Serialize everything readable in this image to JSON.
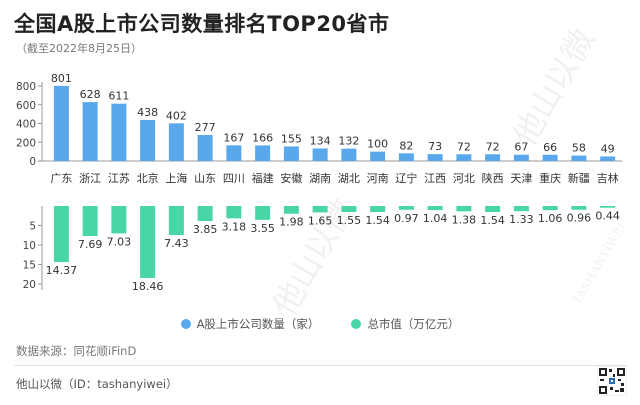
{
  "title": "全国A股上市公司数量排名TOP20省市",
  "subtitle": "（截至2022年8月25日）",
  "source": "数据来源：同花顺iFinD",
  "footer": "他山以微（ID：tashanyiwei）",
  "watermark": "他山以微",
  "watermark_en": "TASHANYIWEI",
  "colors": {
    "blue": "#5aa8ec",
    "green": "#49d6a6",
    "axis": "#999999"
  },
  "legend": [
    {
      "label": "A股上市公司数量（家）",
      "color": "#5aa8ec"
    },
    {
      "label": "总市值（万亿元）",
      "color": "#49d6a6"
    }
  ],
  "chart_data": {
    "type": "bar",
    "categories": [
      "广东",
      "浙江",
      "江苏",
      "北京",
      "上海",
      "山东",
      "四川",
      "福建",
      "安徽",
      "湖南",
      "湖北",
      "河南",
      "辽宁",
      "江西",
      "河北",
      "陕西",
      "天津",
      "重庆",
      "新疆",
      "吉林"
    ],
    "series": [
      {
        "name": "A股上市公司数量（家）",
        "values": [
          801,
          628,
          611,
          438,
          402,
          277,
          167,
          166,
          155,
          134,
          132,
          100,
          82,
          73,
          72,
          72,
          67,
          66,
          58,
          49
        ],
        "labels": [
          "801",
          "628",
          "611",
          "438",
          "402",
          "277",
          "167",
          "166",
          "155",
          "134",
          "132",
          "100",
          "82",
          "73",
          "72",
          "72",
          "67",
          "66",
          "58",
          "49"
        ],
        "ylim": [
          0,
          800
        ],
        "yticks": [
          "0",
          "200",
          "400",
          "600",
          "800"
        ]
      },
      {
        "name": "总市值（万亿元）",
        "values": [
          14.37,
          7.69,
          7.03,
          18.46,
          7.43,
          3.85,
          3.18,
          3.55,
          1.98,
          1.65,
          1.55,
          1.54,
          0.97,
          1.04,
          1.38,
          1.54,
          1.33,
          1.06,
          0.96,
          0.44
        ],
        "labels": [
          "14.37",
          "7.69",
          "7.03",
          "18.46",
          "7.43",
          "3.85",
          "3.18",
          "3.55",
          "1.98",
          "1.65",
          "1.55",
          "1.54",
          "0.97",
          "1.04",
          "1.38",
          "1.54",
          "1.33",
          "1.06",
          "0.96",
          "0.44"
        ],
        "ylim": [
          0,
          20
        ],
        "yticks": [
          "5",
          "10",
          "15",
          "20"
        ],
        "direction": "down"
      }
    ],
    "legend_position": "bottom",
    "grid": false
  }
}
